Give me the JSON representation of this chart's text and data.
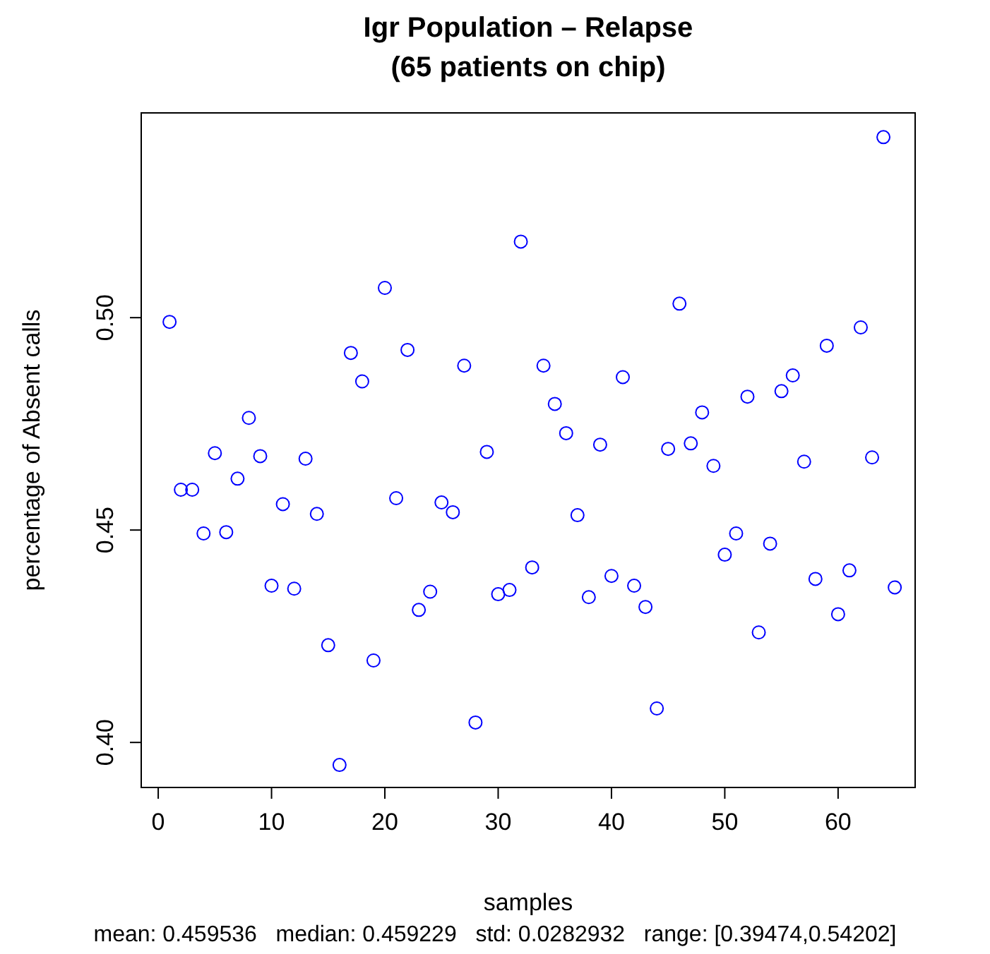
{
  "chart_data": {
    "type": "scatter",
    "title": "Igr Population – Relapse",
    "subtitle": "(65 patients on chip)",
    "xlabel": "samples",
    "ylabel": "percentage of Absent calls",
    "annotations": [
      "mean: 0.459536   median: 0.459229   std: 0.0282932   range: [0.39474,0.54202]"
    ],
    "marker": "circle",
    "x": [
      1,
      2,
      3,
      4,
      5,
      6,
      7,
      8,
      9,
      10,
      11,
      12,
      13,
      14,
      15,
      16,
      17,
      18,
      19,
      20,
      21,
      22,
      23,
      24,
      25,
      26,
      27,
      28,
      29,
      30,
      31,
      32,
      33,
      34,
      35,
      36,
      37,
      38,
      39,
      40,
      41,
      42,
      43,
      44,
      45,
      46,
      47,
      48,
      49,
      50,
      51,
      52,
      53,
      54,
      55,
      56,
      57,
      58,
      59,
      60,
      61,
      62,
      63,
      64,
      65
    ],
    "series": [
      {
        "color": "#0000ff",
        "values": [
          0.499,
          0.4595,
          0.4595,
          0.4492,
          0.4681,
          0.4495,
          0.4621,
          0.4764,
          0.4674,
          0.4369,
          0.4561,
          0.4362,
          0.4668,
          0.4538,
          0.4229,
          0.3947,
          0.4917,
          0.485,
          0.4193,
          0.507,
          0.4575,
          0.4924,
          0.4312,
          0.4355,
          0.4565,
          0.4542,
          0.4887,
          0.4047,
          0.4684,
          0.4349,
          0.4359,
          0.5179,
          0.4412,
          0.4887,
          0.4797,
          0.4728,
          0.4535,
          0.4342,
          0.4701,
          0.4392,
          0.486,
          0.4369,
          0.4319,
          0.408,
          0.4691,
          0.5033,
          0.4704,
          0.4777,
          0.4651,
          0.4442,
          0.4492,
          0.4814,
          0.4259,
          0.4468,
          0.4827,
          0.4864,
          0.4661,
          0.4385,
          0.4934,
          0.4302,
          0.4405,
          0.4977,
          0.4671,
          0.5425,
          0.4365
        ]
      }
    ],
    "xlim": [
      -1.5,
      66.8
    ],
    "ylim": [
      0.3894,
      0.5482
    ],
    "xticks": [
      0,
      10,
      20,
      30,
      40,
      50,
      60
    ],
    "yticks": [
      {
        "value": 0.4,
        "label": "0.40"
      },
      {
        "value": 0.45,
        "label": "0.45"
      },
      {
        "value": 0.5,
        "label": "0.50"
      }
    ]
  }
}
